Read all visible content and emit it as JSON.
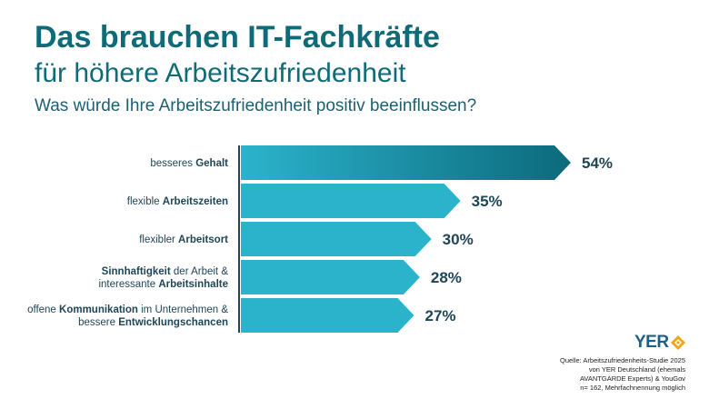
{
  "header": {
    "title_line1": "Das brauchen IT-Fachkräfte",
    "title_line2": "für höhere Arbeitszufriedenheit",
    "subtitle": "Was würde Ihre Arbeitszufriedenheit positiv beeinflussen?"
  },
  "chart_data": {
    "type": "bar",
    "orientation": "horizontal",
    "unit": "%",
    "categories": [
      [
        {
          "t": "besseres "
        },
        {
          "t": "Gehalt",
          "b": true
        }
      ],
      [
        {
          "t": "flexible "
        },
        {
          "t": "Arbeitszeiten",
          "b": true
        }
      ],
      [
        {
          "t": "flexibler "
        },
        {
          "t": "Arbeitsort",
          "b": true
        }
      ],
      [
        {
          "t": "Sinnhaftigkeit",
          "b": true
        },
        {
          "t": " der Arbeit &"
        },
        {
          "br": true
        },
        {
          "t": "interessante "
        },
        {
          "t": "Arbeitsinhalte",
          "b": true
        }
      ],
      [
        {
          "t": "offene "
        },
        {
          "t": "Kommunikation",
          "b": true
        },
        {
          "t": " im Unternehmen &"
        },
        {
          "br": true
        },
        {
          "t": "bessere "
        },
        {
          "t": "Entwicklungschancen",
          "b": true
        }
      ]
    ],
    "values": [
      54,
      35,
      30,
      28,
      27
    ],
    "value_labels": [
      "54%",
      "35%",
      "30%",
      "28%",
      "27%"
    ],
    "colors": {
      "bar_light": "#2bb3cc",
      "bar_dark": "#0c6a7c",
      "separator": "#1e4656",
      "text": "#1e4656"
    }
  },
  "logo": {
    "text": "YER",
    "icon": "diamond-emblem-icon",
    "icon_color": "#f2a516"
  },
  "source": [
    "Quelle: Arbeitszufriedenheits-Studie 2025",
    "von YER Deutschland (ehemals",
    "AVANTGARDE Experts) & YouGov",
    "n= 162, Mehrfachnennung möglich"
  ]
}
